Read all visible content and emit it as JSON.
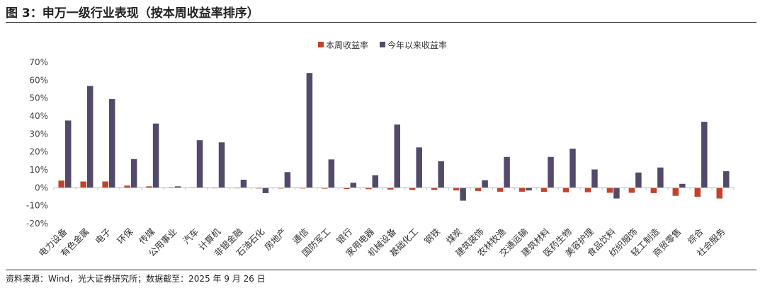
{
  "figure_title": "图 3：申万一级行业表现（按本周收益率排序）",
  "source_note": "资料来源：Wind，光大证券研究所；数据截至：2025 年 9 月 26 日",
  "colors": {
    "weekly": "#c0442b",
    "ytd": "#534a6b",
    "axis": "#bdbdbd",
    "text": "#333333"
  },
  "chart_data": {
    "type": "bar",
    "title": "",
    "xlabel": "",
    "ylabel": "",
    "ylim": [
      -20,
      70
    ],
    "yticks": [
      -20,
      -10,
      0,
      10,
      20,
      30,
      40,
      50,
      60,
      70
    ],
    "ytick_labels": [
      "-20%",
      "-10%",
      "0%",
      "10%",
      "20%",
      "30%",
      "40%",
      "50%",
      "60%",
      "70%"
    ],
    "grid": false,
    "legend_position": "top-center",
    "categories": [
      "电力设备",
      "有色金属",
      "电子",
      "环保",
      "传媒",
      "公用事业",
      "汽车",
      "计算机",
      "非银金融",
      "石油石化",
      "房地产",
      "通信",
      "国防军工",
      "银行",
      "家用电器",
      "机械设备",
      "基础化工",
      "钢铁",
      "煤炭",
      "建筑装饰",
      "农林牧渔",
      "交通运输",
      "建筑材料",
      "医药生物",
      "美容护理",
      "食品饮料",
      "纺织服饰",
      "轻工制造",
      "商贸零售",
      "综合",
      "社会服务"
    ],
    "series": [
      {
        "name": "本周收益率",
        "values": [
          4.0,
          3.5,
          3.5,
          1.2,
          0.8,
          0.3,
          0.2,
          -0.2,
          -0.3,
          -0.4,
          -0.4,
          -0.4,
          -0.5,
          -0.7,
          -0.8,
          -1.0,
          -1.2,
          -1.2,
          -1.5,
          -1.8,
          -2.2,
          -2.2,
          -2.3,
          -2.5,
          -2.5,
          -2.8,
          -2.8,
          -3.0,
          -4.5,
          -5.0,
          -6.0
        ]
      },
      {
        "name": "今年以来收益率",
        "values": [
          37.5,
          56.8,
          49.5,
          16.0,
          35.8,
          0.8,
          26.5,
          25.3,
          4.5,
          -3.0,
          8.7,
          64.0,
          15.8,
          2.8,
          7.0,
          35.3,
          22.5,
          14.8,
          -7.2,
          4.2,
          17.2,
          -1.5,
          17.2,
          21.8,
          10.2,
          -6.0,
          8.5,
          11.3,
          2.2,
          36.8,
          9.2
        ]
      }
    ]
  }
}
